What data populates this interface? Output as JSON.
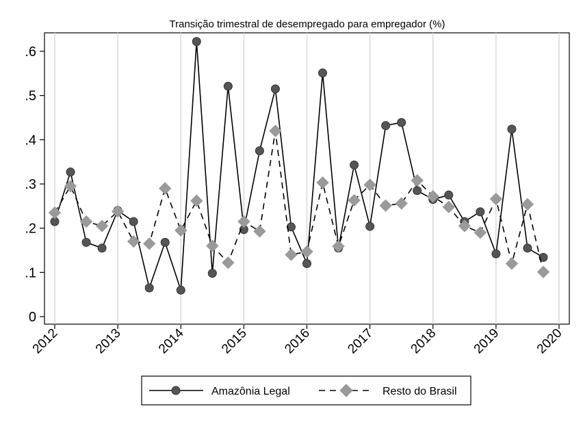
{
  "chart_data": {
    "type": "line",
    "title": "Transição trimestral de desempregado para empregador (%)",
    "xlabel": "",
    "ylabel": "",
    "x_ticks": [
      "2012",
      "2013",
      "2014",
      "2015",
      "2016",
      "2017",
      "2018",
      "2019",
      "2020"
    ],
    "y_ticks": [
      "0",
      ".1",
      ".2",
      ".3",
      ".4",
      ".5",
      ".6"
    ],
    "xlim": [
      2012,
      2020
    ],
    "ylim": [
      0,
      0.6
    ],
    "x": [
      2012.0,
      2012.25,
      2012.5,
      2012.75,
      2013.0,
      2013.25,
      2013.5,
      2013.75,
      2014.0,
      2014.25,
      2014.5,
      2014.75,
      2015.0,
      2015.25,
      2015.5,
      2015.75,
      2016.0,
      2016.25,
      2016.5,
      2016.75,
      2017.0,
      2017.25,
      2017.5,
      2017.75,
      2018.0,
      2018.25,
      2018.5,
      2018.75,
      2019.0,
      2019.25,
      2019.5,
      2019.75
    ],
    "grid": "vertical",
    "legend_position": "bottom",
    "series": [
      {
        "name": "Amazônia Legal",
        "line": "solid",
        "marker": "circle",
        "color": "#555555",
        "values": [
          0.215,
          0.327,
          0.168,
          0.155,
          0.24,
          0.215,
          0.065,
          0.168,
          0.06,
          0.622,
          0.098,
          0.521,
          0.197,
          0.375,
          0.515,
          0.203,
          0.12,
          0.551,
          0.155,
          0.343,
          0.204,
          0.432,
          0.439,
          0.285,
          0.265,
          0.275,
          0.215,
          0.237,
          0.142,
          0.424,
          0.155,
          0.134
        ]
      },
      {
        "name": "Resto do Brasil",
        "line": "dashed",
        "marker": "diamond",
        "color": "#9a9a9a",
        "values": [
          0.235,
          0.295,
          0.215,
          0.205,
          0.238,
          0.17,
          0.165,
          0.29,
          0.195,
          0.262,
          0.16,
          0.122,
          0.215,
          0.193,
          0.42,
          0.14,
          0.147,
          0.303,
          0.159,
          0.263,
          0.298,
          0.251,
          0.256,
          0.308,
          0.272,
          0.248,
          0.205,
          0.19,
          0.266,
          0.12,
          0.254,
          0.101
        ]
      }
    ]
  }
}
